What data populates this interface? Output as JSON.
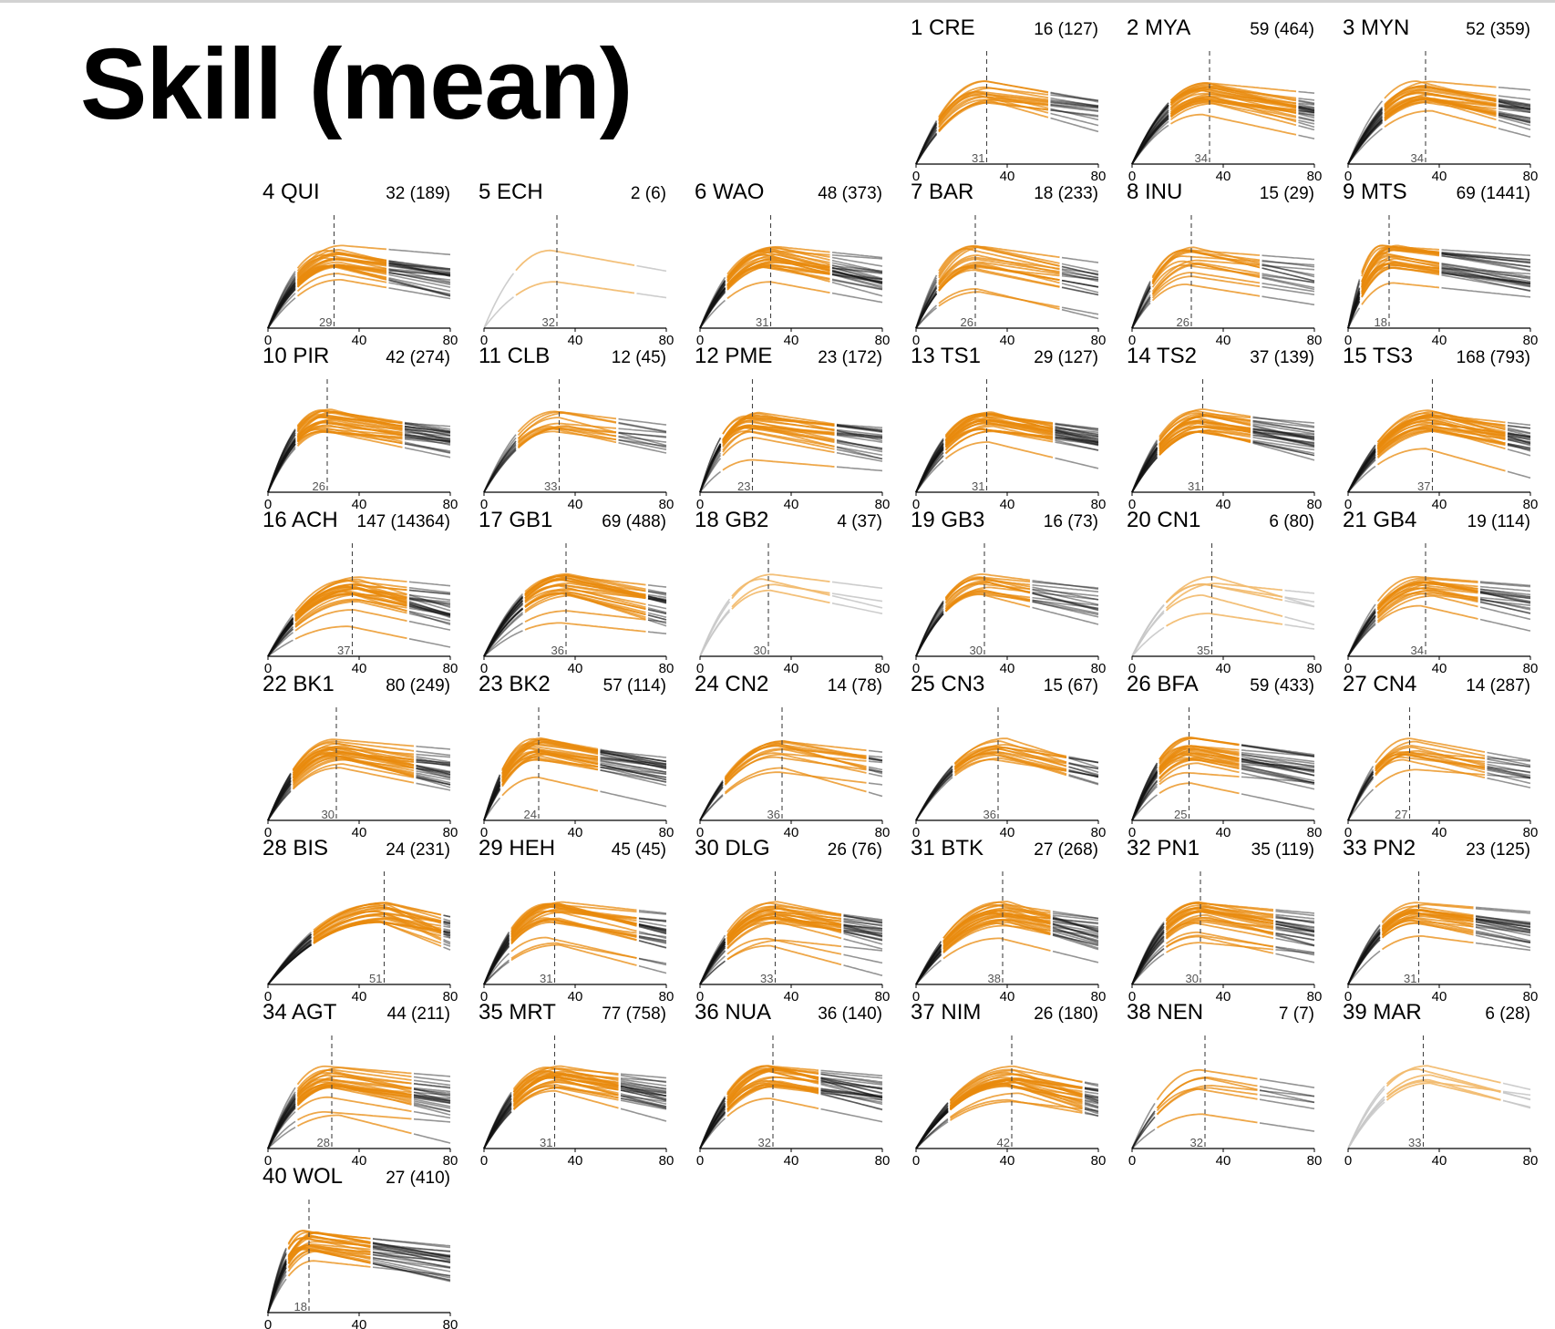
{
  "title": "Skill (mean)",
  "colors": {
    "selected": "#e8890c",
    "selected_light": "#f2b96a",
    "reference": "#111111",
    "reference_light": "#c8c8c8"
  },
  "chart_data": {
    "type": "line",
    "x_range": [
      0,
      80
    ],
    "x_ticks": [
      0,
      40,
      80
    ],
    "grid": false,
    "panels": [
      {
        "id": 1,
        "code": "CRE",
        "n": 16,
        "total": 127,
        "peak": 31
      },
      {
        "id": 2,
        "code": "MYA",
        "n": 59,
        "total": 464,
        "peak": 34
      },
      {
        "id": 3,
        "code": "MYN",
        "n": 52,
        "total": 359,
        "peak": 34
      },
      {
        "id": 4,
        "code": "QUI",
        "n": 32,
        "total": 189,
        "peak": 29
      },
      {
        "id": 5,
        "code": "ECH",
        "n": 2,
        "total": 6,
        "peak": 32
      },
      {
        "id": 6,
        "code": "WAO",
        "n": 48,
        "total": 373,
        "peak": 31
      },
      {
        "id": 7,
        "code": "BAR",
        "n": 18,
        "total": 233,
        "peak": 26
      },
      {
        "id": 8,
        "code": "INU",
        "n": 15,
        "total": 29,
        "peak": 26
      },
      {
        "id": 9,
        "code": "MTS",
        "n": 69,
        "total": 1441,
        "peak": 18
      },
      {
        "id": 10,
        "code": "PIR",
        "n": 42,
        "total": 274,
        "peak": 26
      },
      {
        "id": 11,
        "code": "CLB",
        "n": 12,
        "total": 45,
        "peak": 33
      },
      {
        "id": 12,
        "code": "PME",
        "n": 23,
        "total": 172,
        "peak": 23
      },
      {
        "id": 13,
        "code": "TS1",
        "n": 29,
        "total": 127,
        "peak": 31
      },
      {
        "id": 14,
        "code": "TS2",
        "n": 37,
        "total": 139,
        "peak": 31
      },
      {
        "id": 15,
        "code": "TS3",
        "n": 168,
        "total": 793,
        "peak": 37
      },
      {
        "id": 16,
        "code": "ACH",
        "n": 147,
        "total": 14364,
        "peak": 37
      },
      {
        "id": 17,
        "code": "GB1",
        "n": 69,
        "total": 488,
        "peak": 36
      },
      {
        "id": 18,
        "code": "GB2",
        "n": 4,
        "total": 37,
        "peak": 30
      },
      {
        "id": 19,
        "code": "GB3",
        "n": 16,
        "total": 73,
        "peak": 30
      },
      {
        "id": 20,
        "code": "CN1",
        "n": 6,
        "total": 80,
        "peak": 35
      },
      {
        "id": 21,
        "code": "GB4",
        "n": 19,
        "total": 114,
        "peak": 34
      },
      {
        "id": 22,
        "code": "BK1",
        "n": 80,
        "total": 249,
        "peak": 30
      },
      {
        "id": 23,
        "code": "BK2",
        "n": 57,
        "total": 114,
        "peak": 24
      },
      {
        "id": 24,
        "code": "CN2",
        "n": 14,
        "total": 78,
        "peak": 36
      },
      {
        "id": 25,
        "code": "CN3",
        "n": 15,
        "total": 67,
        "peak": 36
      },
      {
        "id": 26,
        "code": "BFA",
        "n": 59,
        "total": 433,
        "peak": 25
      },
      {
        "id": 27,
        "code": "CN4",
        "n": 14,
        "total": 287,
        "peak": 27
      },
      {
        "id": 28,
        "code": "BIS",
        "n": 24,
        "total": 231,
        "peak": 51
      },
      {
        "id": 29,
        "code": "HEH",
        "n": 45,
        "total": 45,
        "peak": 31
      },
      {
        "id": 30,
        "code": "DLG",
        "n": 26,
        "total": 76,
        "peak": 33
      },
      {
        "id": 31,
        "code": "BTK",
        "n": 27,
        "total": 268,
        "peak": 38
      },
      {
        "id": 32,
        "code": "PN1",
        "n": 35,
        "total": 119,
        "peak": 30
      },
      {
        "id": 33,
        "code": "PN2",
        "n": 23,
        "total": 125,
        "peak": 31
      },
      {
        "id": 34,
        "code": "AGT",
        "n": 44,
        "total": 211,
        "peak": 28
      },
      {
        "id": 35,
        "code": "MRT",
        "n": 77,
        "total": 758,
        "peak": 31
      },
      {
        "id": 36,
        "code": "NUA",
        "n": 36,
        "total": 140,
        "peak": 32
      },
      {
        "id": 37,
        "code": "NIM",
        "n": 26,
        "total": 180,
        "peak": 42
      },
      {
        "id": 38,
        "code": "NEN",
        "n": 7,
        "total": 7,
        "peak": 32
      },
      {
        "id": 39,
        "code": "MAR",
        "n": 6,
        "total": 28,
        "peak": 33
      },
      {
        "id": 40,
        "code": "WOL",
        "n": 27,
        "total": 410,
        "peak": 18
      }
    ]
  }
}
